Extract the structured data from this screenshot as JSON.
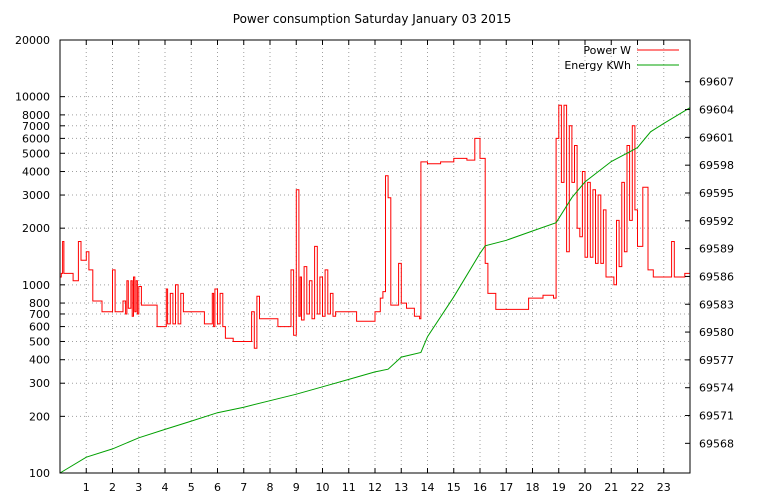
{
  "chart_data": {
    "type": "line",
    "title": "Power consumption Saturday January 03 2015",
    "xlabel": "",
    "ylabel": "",
    "xlim": [
      0,
      24
    ],
    "x_ticks": [
      1,
      2,
      3,
      4,
      5,
      6,
      7,
      8,
      9,
      10,
      11,
      12,
      13,
      14,
      15,
      16,
      17,
      18,
      19,
      20,
      21,
      22,
      23
    ],
    "y_left": {
      "scale": "log",
      "lim": [
        100,
        20000
      ],
      "ticks": [
        100,
        200,
        300,
        400,
        500,
        600,
        700,
        800,
        1000,
        2000,
        3000,
        4000,
        5000,
        6000,
        7000,
        8000,
        10000,
        20000
      ]
    },
    "y_right": {
      "scale": "linear",
      "lim": [
        69564.8,
        69611.5
      ],
      "ticks": [
        69568,
        69571,
        69574,
        69577,
        69580,
        69583,
        69586,
        69589,
        69592,
        69595,
        69598,
        69601,
        69604,
        69607
      ]
    },
    "grid": true,
    "legend_position": "top-right",
    "series": [
      {
        "name": "Power W",
        "color": "#ff0000",
        "axis": "left",
        "step": true,
        "points": [
          [
            0.0,
            1100
          ],
          [
            0.05,
            1150
          ],
          [
            0.1,
            1700
          ],
          [
            0.15,
            1150
          ],
          [
            0.5,
            1050
          ],
          [
            0.7,
            1700
          ],
          [
            0.8,
            1350
          ],
          [
            1.0,
            1500
          ],
          [
            1.1,
            1200
          ],
          [
            1.25,
            820
          ],
          [
            1.6,
            720
          ],
          [
            2.0,
            1200
          ],
          [
            2.1,
            720
          ],
          [
            2.4,
            820
          ],
          [
            2.5,
            700
          ],
          [
            2.55,
            1050
          ],
          [
            2.6,
            750
          ],
          [
            2.7,
            1050
          ],
          [
            2.75,
            680
          ],
          [
            2.8,
            1100
          ],
          [
            2.85,
            720
          ],
          [
            2.9,
            1050
          ],
          [
            2.95,
            700
          ],
          [
            3.0,
            980
          ],
          [
            3.1,
            780
          ],
          [
            3.5,
            780
          ],
          [
            3.7,
            600
          ],
          [
            4.05,
            950
          ],
          [
            4.1,
            620
          ],
          [
            4.2,
            900
          ],
          [
            4.3,
            620
          ],
          [
            4.4,
            1000
          ],
          [
            4.5,
            620
          ],
          [
            4.6,
            900
          ],
          [
            4.7,
            720
          ],
          [
            5.5,
            620
          ],
          [
            5.8,
            900
          ],
          [
            5.85,
            600
          ],
          [
            5.9,
            950
          ],
          [
            6.0,
            620
          ],
          [
            6.1,
            900
          ],
          [
            6.2,
            600
          ],
          [
            6.3,
            520
          ],
          [
            6.6,
            500
          ],
          [
            7.3,
            720
          ],
          [
            7.4,
            460
          ],
          [
            7.5,
            870
          ],
          [
            7.6,
            660
          ],
          [
            8.3,
            600
          ],
          [
            8.8,
            1200
          ],
          [
            8.9,
            540
          ],
          [
            9.0,
            3200
          ],
          [
            9.1,
            680
          ],
          [
            9.15,
            1100
          ],
          [
            9.2,
            650
          ],
          [
            9.3,
            1250
          ],
          [
            9.4,
            700
          ],
          [
            9.5,
            1050
          ],
          [
            9.6,
            660
          ],
          [
            9.7,
            1600
          ],
          [
            9.8,
            700
          ],
          [
            9.9,
            1100
          ],
          [
            10.0,
            680
          ],
          [
            10.1,
            1200
          ],
          [
            10.2,
            700
          ],
          [
            10.3,
            900
          ],
          [
            10.4,
            680
          ],
          [
            10.5,
            720
          ],
          [
            11.3,
            640
          ],
          [
            12.0,
            720
          ],
          [
            12.2,
            850
          ],
          [
            12.3,
            920
          ],
          [
            12.4,
            3800
          ],
          [
            12.5,
            2900
          ],
          [
            12.6,
            780
          ],
          [
            12.9,
            1300
          ],
          [
            13.0,
            800
          ],
          [
            13.2,
            750
          ],
          [
            13.5,
            680
          ],
          [
            13.7,
            660
          ],
          [
            13.75,
            4500
          ],
          [
            14.0,
            4400
          ],
          [
            14.5,
            4500
          ],
          [
            15.0,
            4700
          ],
          [
            15.5,
            4600
          ],
          [
            15.8,
            6000
          ],
          [
            16.0,
            4700
          ],
          [
            16.2,
            1300
          ],
          [
            16.3,
            900
          ],
          [
            16.6,
            740
          ],
          [
            17.8,
            740
          ],
          [
            17.85,
            850
          ],
          [
            18.4,
            880
          ],
          [
            18.8,
            850
          ],
          [
            18.9,
            6000
          ],
          [
            19.0,
            9000
          ],
          [
            19.1,
            3500
          ],
          [
            19.2,
            9000
          ],
          [
            19.3,
            1500
          ],
          [
            19.4,
            7000
          ],
          [
            19.5,
            3500
          ],
          [
            19.6,
            5500
          ],
          [
            19.7,
            2000
          ],
          [
            19.8,
            1800
          ],
          [
            19.9,
            4000
          ],
          [
            20.0,
            1400
          ],
          [
            20.1,
            3500
          ],
          [
            20.2,
            1400
          ],
          [
            20.3,
            3200
          ],
          [
            20.4,
            1300
          ],
          [
            20.5,
            3000
          ],
          [
            20.6,
            1300
          ],
          [
            20.7,
            2500
          ],
          [
            20.8,
            1100
          ],
          [
            20.9,
            1100
          ],
          [
            21.1,
            1000
          ],
          [
            21.2,
            2200
          ],
          [
            21.3,
            1250
          ],
          [
            21.4,
            3500
          ],
          [
            21.5,
            1500
          ],
          [
            21.6,
            5500
          ],
          [
            21.7,
            2200
          ],
          [
            21.8,
            7000
          ],
          [
            21.9,
            2500
          ],
          [
            22.0,
            1600
          ],
          [
            22.2,
            3300
          ],
          [
            22.4,
            1200
          ],
          [
            22.6,
            1100
          ],
          [
            23.0,
            1100
          ],
          [
            23.3,
            1700
          ],
          [
            23.4,
            1100
          ],
          [
            23.8,
            1150
          ],
          [
            24.0,
            1150
          ]
        ]
      },
      {
        "name": "Energy KWh",
        "color": "#00a000",
        "axis": "right",
        "step": false,
        "points": [
          [
            0.0,
            69564.8
          ],
          [
            1.0,
            69566.5
          ],
          [
            2.0,
            69567.4
          ],
          [
            3.0,
            69568.6
          ],
          [
            4.0,
            69569.5
          ],
          [
            5.0,
            69570.4
          ],
          [
            6.0,
            69571.3
          ],
          [
            7.0,
            69571.9
          ],
          [
            8.0,
            69572.6
          ],
          [
            9.0,
            69573.3
          ],
          [
            10.0,
            69574.1
          ],
          [
            11.0,
            69574.9
          ],
          [
            12.0,
            69575.7
          ],
          [
            12.5,
            69576.0
          ],
          [
            13.0,
            69577.3
          ],
          [
            13.75,
            69577.8
          ],
          [
            14.0,
            69579.5
          ],
          [
            15.0,
            69583.8
          ],
          [
            16.0,
            69588.5
          ],
          [
            16.2,
            69589.3
          ],
          [
            17.0,
            69589.9
          ],
          [
            18.0,
            69590.9
          ],
          [
            18.9,
            69591.8
          ],
          [
            19.5,
            69594.5
          ],
          [
            20.0,
            69596.2
          ],
          [
            21.0,
            69598.4
          ],
          [
            22.0,
            69599.9
          ],
          [
            22.5,
            69601.6
          ],
          [
            23.0,
            69602.5
          ],
          [
            24.0,
            69604.2
          ]
        ]
      }
    ]
  }
}
